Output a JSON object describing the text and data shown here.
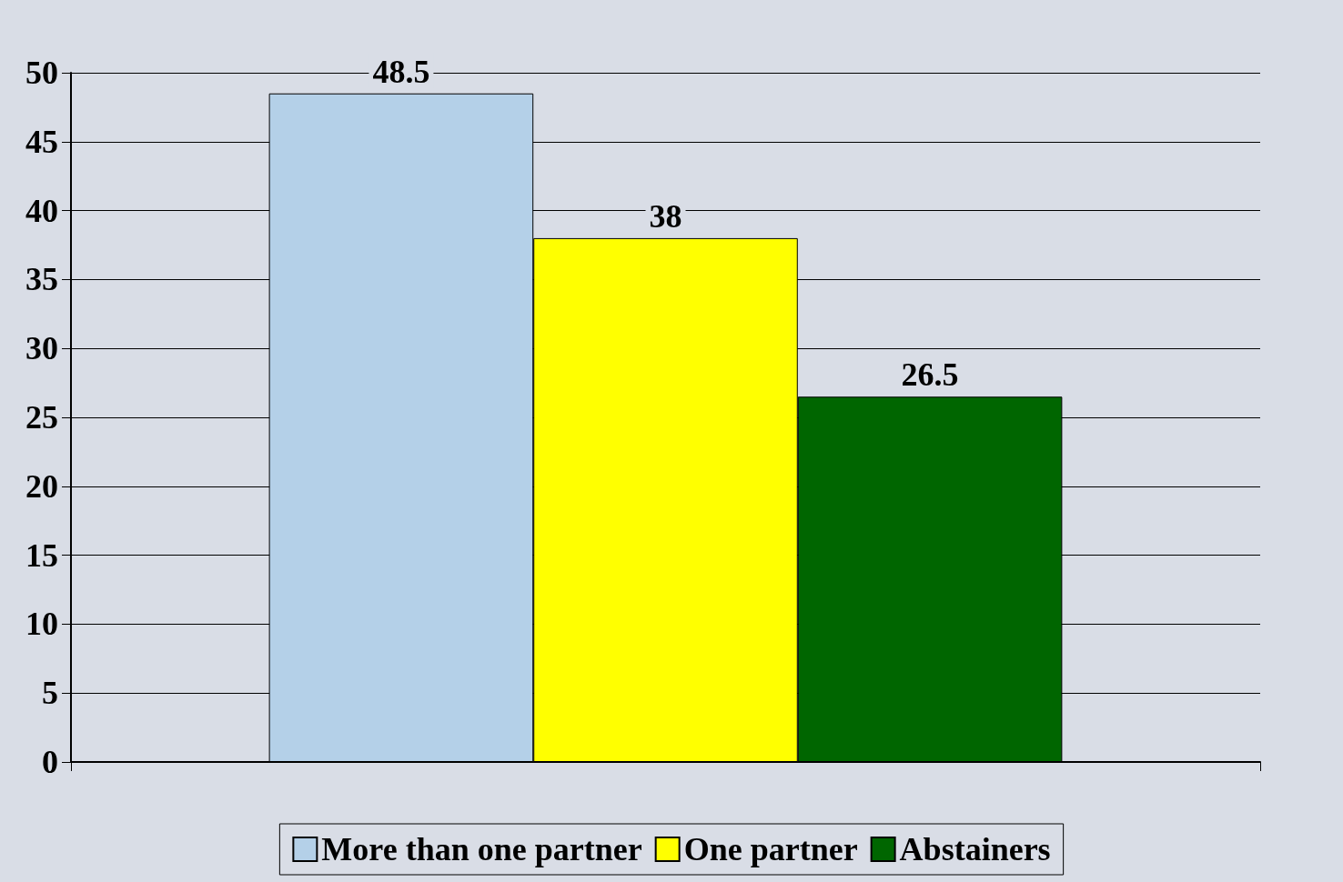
{
  "chart_data": {
    "type": "bar",
    "categories": [
      null
    ],
    "series": [
      {
        "name": "More than one partner",
        "color": "#b4d0e8",
        "values": [
          48.5
        ]
      },
      {
        "name": "One partner",
        "color": "#ffff00",
        "values": [
          38
        ]
      },
      {
        "name": "Abstainers",
        "color": "#006600",
        "values": [
          26.5
        ]
      }
    ],
    "ylim": [
      0,
      50
    ],
    "yticks": [
      0,
      5,
      10,
      15,
      20,
      25,
      30,
      35,
      40,
      45,
      50
    ],
    "grid": "y",
    "legend": "bottom",
    "data_labels": true
  }
}
